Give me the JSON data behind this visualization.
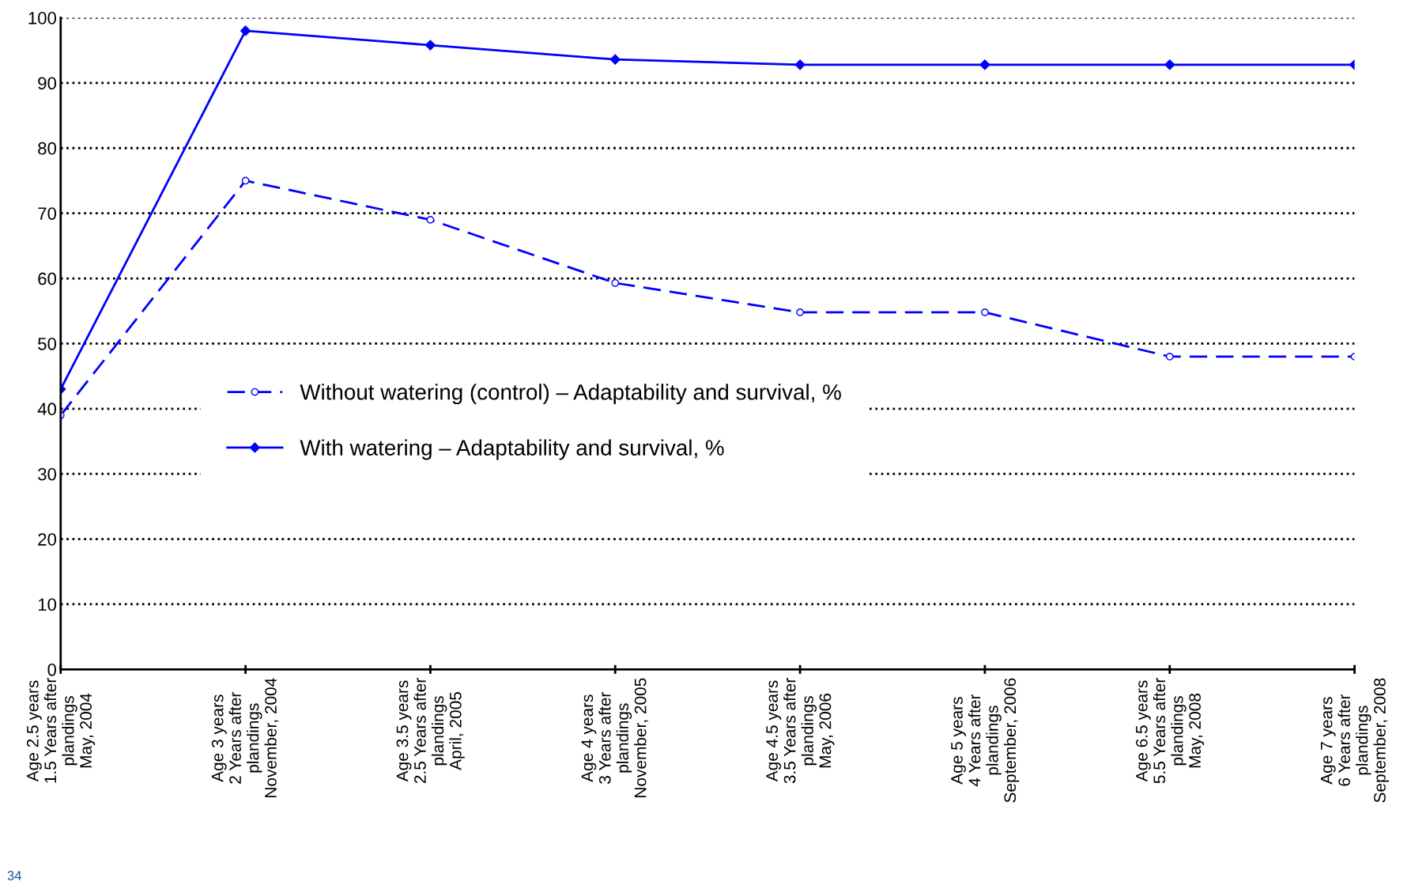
{
  "chart_data": {
    "type": "line",
    "categories": [
      "Age 2.5 years\n1.5 Years after\nplandings\nMay, 2004",
      "Age 3 years\n2 Years after\nplandings\nNovember, 2004",
      "Age 3.5 years\n2.5 Years after\nplandings\nApril, 2005",
      "Age 4 years\n3 Years after\nplandings\nNovember, 2005",
      "Age 4.5 years\n3.5 Years after\nplandings\nMay, 2006",
      "Age 5 years\n4 Years after\nplandings\nSeptember, 2006",
      "Age 6.5 years\n5.5 Years after\nplandings\nMay, 2008",
      "Age 7 years\n6 Years after\nplandings\nSeptember, 2008"
    ],
    "series": [
      {
        "name": "Without watering (control) – Adaptability and survival, %",
        "color": "#0000ff",
        "line_style": "dashed",
        "marker": "circle",
        "values": [
          39,
          75,
          69,
          59.3,
          54.8,
          54.8,
          48,
          48
        ]
      },
      {
        "name": "With watering – Adaptability and survival, %",
        "color": "#0000ff",
        "line_style": "solid",
        "marker": "diamond",
        "values": [
          43,
          98,
          95.8,
          93.6,
          92.8,
          92.8,
          92.8,
          92.8
        ]
      }
    ],
    "ylim": [
      0,
      100
    ],
    "yticks": [
      0,
      10,
      20,
      30,
      40,
      50,
      60,
      70,
      80,
      90,
      100
    ],
    "grid": "y",
    "legend": "center left",
    "annotations": [
      "34"
    ]
  }
}
